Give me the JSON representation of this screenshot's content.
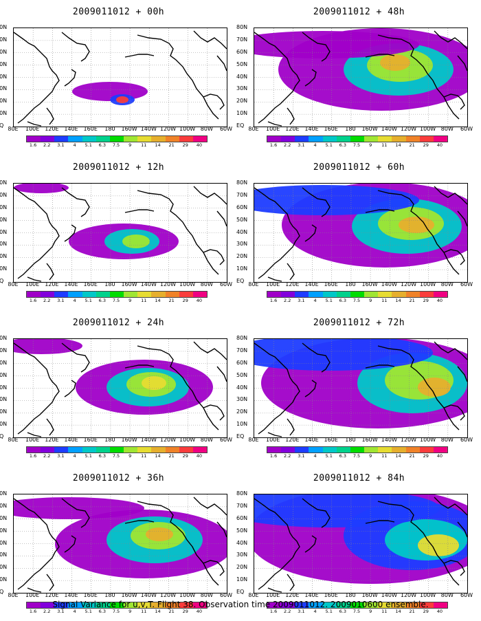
{
  "panels": [
    {
      "title": "2009011012 + 00h",
      "stage": 0
    },
    {
      "title": "2009011012 + 48h",
      "stage": 4
    },
    {
      "title": "2009011012 + 12h",
      "stage": 1
    },
    {
      "title": "2009011012 + 60h",
      "stage": 5
    },
    {
      "title": "2009011012 + 24h",
      "stage": 2
    },
    {
      "title": "2009011012 + 72h",
      "stage": 6
    },
    {
      "title": "2009011012 + 36h",
      "stage": 3
    },
    {
      "title": "2009011012 + 84h",
      "stage": 7
    }
  ],
  "lat_labels": [
    "80N",
    "70N",
    "60N",
    "50N",
    "40N",
    "30N",
    "20N",
    "10N",
    "EQ"
  ],
  "lon_labels": [
    "80E",
    "100E",
    "120E",
    "140E",
    "160E",
    "180",
    "160W",
    "140W",
    "120W",
    "100W",
    "80W",
    "60W"
  ],
  "colorbar": {
    "levels": [
      "1.6",
      "2.2",
      "3.1",
      "4",
      "5.1",
      "6.3",
      "7.5",
      "9",
      "11",
      "14",
      "21",
      "29",
      "40"
    ],
    "colors": [
      "#a000c8",
      "#8200dc",
      "#1e3cff",
      "#00a0ff",
      "#00c8c8",
      "#00d28c",
      "#00dc00",
      "#a0e632",
      "#e6dc32",
      "#e6af2d",
      "#f08228",
      "#fa3c3c",
      "#f00082"
    ]
  },
  "caption": "Signal Variance for u,v,T. Flight 38. Observation time 2009011012. 2009010600 ensemble."
}
